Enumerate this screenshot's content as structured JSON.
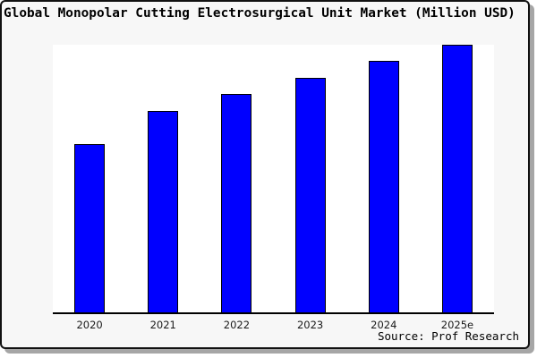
{
  "figure": {
    "title": "Global Monopolar Cutting Electrosurgical Unit Market (Million USD)",
    "source_note": "Source: Prof Research"
  },
  "colors": {
    "bar_fill": "#0000ff",
    "bar_border": "#000000",
    "plot_bg": "#ffffff",
    "figure_bg": "#f7f7f7",
    "frame_border": "#111111",
    "shadow": "#a6a6a6",
    "axis": "#000000",
    "text": "#000000"
  },
  "chart_data": {
    "type": "bar",
    "title": "Global Monopolar Cutting Electrosurgical Unit Market (Million USD)",
    "categories": [
      "2020",
      "2021",
      "2022",
      "2023",
      "2024",
      "2025e"
    ],
    "values": [
      63,
      75.3,
      81.7,
      87.7,
      94,
      100
    ],
    "values_note": "No y-axis scale or data labels are shown in the chart; values are relative bar heights normalized so the tallest bar (2025e) = 100",
    "xlabel": "",
    "ylabel": "",
    "ylim": [
      0,
      100
    ],
    "grid": false,
    "legend": false,
    "y_axis_visible": false,
    "x_axis_visible": true,
    "annotations": [
      "Source: Prof Research"
    ],
    "bar_color": "#0000ff"
  }
}
